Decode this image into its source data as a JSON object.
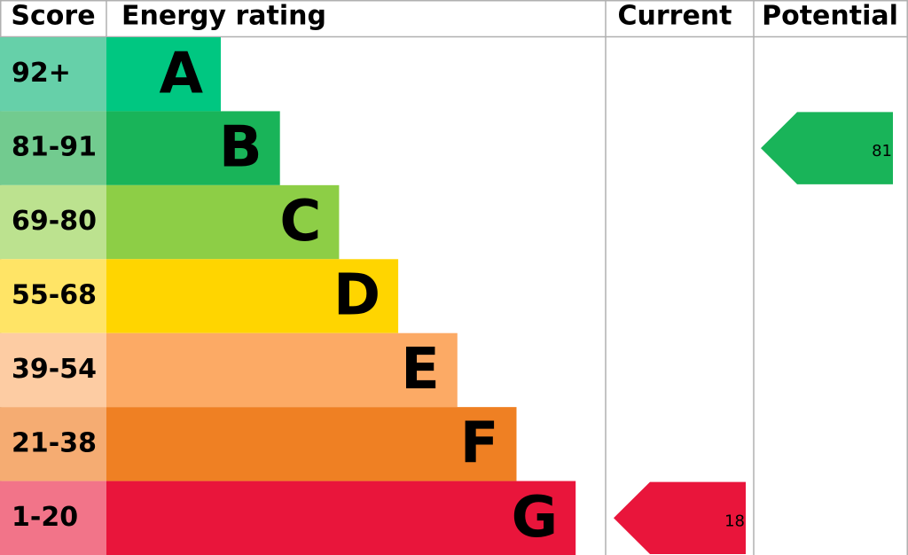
{
  "header": {
    "score": "Score",
    "rating": "Energy rating",
    "current": "Current",
    "potential": "Potential"
  },
  "bands": [
    {
      "score": "92+",
      "letter": "A",
      "color": "#00c781",
      "score_color": "#66d0a9"
    },
    {
      "score": "81-91",
      "letter": "B",
      "color": "#19b459",
      "score_color": "#72cb8f"
    },
    {
      "score": "69-80",
      "letter": "C",
      "color": "#8dce46",
      "score_color": "#bce28f"
    },
    {
      "score": "55-68",
      "letter": "D",
      "color": "#ffd500",
      "score_color": "#ffe466"
    },
    {
      "score": "39-54",
      "letter": "E",
      "color": "#fcaa65",
      "score_color": "#fdcca3"
    },
    {
      "score": "21-38",
      "letter": "F",
      "color": "#ef8023",
      "score_color": "#f5ac72"
    },
    {
      "score": "1-20",
      "letter": "G",
      "color": "#e9153b",
      "score_color": "#f27489"
    }
  ],
  "current": 18,
  "potential": 81
}
